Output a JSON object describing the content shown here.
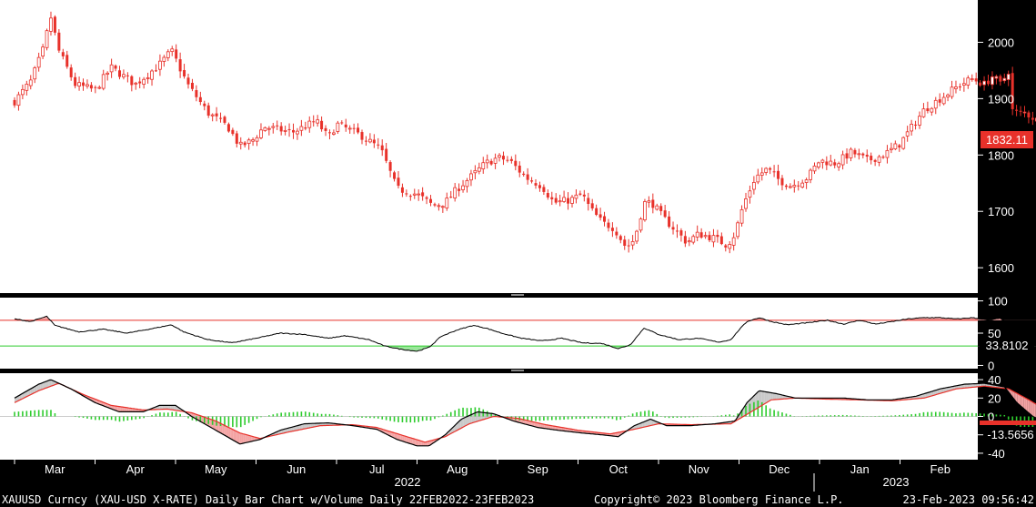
{
  "footer": {
    "left": "XAUUSD Curncy (XAU-USD X-RATE) Daily Bar Chart w/Volume  Daily 22FEB2022-23FEB2023",
    "center": "Copyright© 2023 Bloomberg Finance L.P.",
    "right": "23-Feb-2023 09:56:42"
  },
  "colors": {
    "background": "#000000",
    "panel": "#ffffff",
    "candle": "#e8312a",
    "rsi_line": "#000000",
    "overbought": "#e8312a",
    "oversold": "#2ecc2e",
    "macd_line": "#000000",
    "signal_line": "#e8312a",
    "histogram": "#2ecc2e",
    "last_value_tag": "#e8312a"
  },
  "chart_data": [
    {
      "type": "candlestick",
      "name": "price",
      "last_value": "1832.11",
      "yticks": [
        "2000",
        "1900",
        "1800",
        "1700",
        "1600"
      ],
      "ylim": [
        1555,
        2075
      ],
      "xlabels": [
        "Mar",
        "Apr",
        "May",
        "Jun",
        "Jul",
        "Aug",
        "Sep",
        "Oct",
        "Nov",
        "Dec",
        "Jan",
        "Feb"
      ],
      "year_labels": [
        "2022",
        "2023"
      ],
      "close_anchors": [
        {
          "m": 0.0,
          "v": 1895
        },
        {
          "m": 0.2,
          "v": 1930
        },
        {
          "m": 0.35,
          "v": 1985
        },
        {
          "m": 0.45,
          "v": 2045
        },
        {
          "m": 0.55,
          "v": 1985
        },
        {
          "m": 0.75,
          "v": 1925
        },
        {
          "m": 1.0,
          "v": 1915
        },
        {
          "m": 1.2,
          "v": 1955
        },
        {
          "m": 1.5,
          "v": 1925
        },
        {
          "m": 1.8,
          "v": 1960
        },
        {
          "m": 1.95,
          "v": 1985
        },
        {
          "m": 2.15,
          "v": 1925
        },
        {
          "m": 2.4,
          "v": 1875
        },
        {
          "m": 2.65,
          "v": 1850
        },
        {
          "m": 2.8,
          "v": 1815
        },
        {
          "m": 2.95,
          "v": 1825
        },
        {
          "m": 3.1,
          "v": 1850
        },
        {
          "m": 3.45,
          "v": 1840
        },
        {
          "m": 3.75,
          "v": 1860
        },
        {
          "m": 3.9,
          "v": 1830
        },
        {
          "m": 4.0,
          "v": 1855
        },
        {
          "m": 4.3,
          "v": 1835
        },
        {
          "m": 4.55,
          "v": 1810
        },
        {
          "m": 4.75,
          "v": 1740
        },
        {
          "m": 5.0,
          "v": 1730
        },
        {
          "m": 5.2,
          "v": 1710
        },
        {
          "m": 5.35,
          "v": 1715
        },
        {
          "m": 5.5,
          "v": 1740
        },
        {
          "m": 5.7,
          "v": 1765
        },
        {
          "m": 5.85,
          "v": 1785
        },
        {
          "m": 6.0,
          "v": 1795
        },
        {
          "m": 6.15,
          "v": 1790
        },
        {
          "m": 6.35,
          "v": 1760
        },
        {
          "m": 6.55,
          "v": 1745
        },
        {
          "m": 6.7,
          "v": 1715
        },
        {
          "m": 6.9,
          "v": 1720
        },
        {
          "m": 7.05,
          "v": 1730
        },
        {
          "m": 7.15,
          "v": 1705
        },
        {
          "m": 7.3,
          "v": 1680
        },
        {
          "m": 7.45,
          "v": 1670
        },
        {
          "m": 7.6,
          "v": 1635
        },
        {
          "m": 7.7,
          "v": 1650
        },
        {
          "m": 7.82,
          "v": 1715
        },
        {
          "m": 7.92,
          "v": 1715
        },
        {
          "m": 8.05,
          "v": 1690
        },
        {
          "m": 8.2,
          "v": 1668
        },
        {
          "m": 8.35,
          "v": 1645
        },
        {
          "m": 8.5,
          "v": 1660
        },
        {
          "m": 8.7,
          "v": 1652
        },
        {
          "m": 8.85,
          "v": 1640
        },
        {
          "m": 8.95,
          "v": 1660
        },
        {
          "m": 9.05,
          "v": 1710
        },
        {
          "m": 9.2,
          "v": 1760
        },
        {
          "m": 9.35,
          "v": 1775
        },
        {
          "m": 9.5,
          "v": 1755
        },
        {
          "m": 9.65,
          "v": 1745
        },
        {
          "m": 9.85,
          "v": 1760
        },
        {
          "m": 10.0,
          "v": 1790
        },
        {
          "m": 10.2,
          "v": 1785
        },
        {
          "m": 10.4,
          "v": 1805
        },
        {
          "m": 10.6,
          "v": 1790
        },
        {
          "m": 10.8,
          "v": 1800
        },
        {
          "m": 11.0,
          "v": 1820
        },
        {
          "m": 11.15,
          "v": 1850
        },
        {
          "m": 11.3,
          "v": 1880
        },
        {
          "m": 11.45,
          "v": 1895
        },
        {
          "m": 11.6,
          "v": 1910
        },
        {
          "m": 11.75,
          "v": 1925
        },
        {
          "m": 11.9,
          "v": 1935
        },
        {
          "m": 12.05,
          "v": 1925
        },
        {
          "m": 12.15,
          "v": 1940
        },
        {
          "m": 12.25,
          "v": 1925
        },
        {
          "m": 12.35,
          "v": 1950
        },
        {
          "m": 12.4,
          "v": 1875
        },
        {
          "m": 12.55,
          "v": 1875
        },
        {
          "m": 12.7,
          "v": 1862
        },
        {
          "m": 12.85,
          "v": 1840
        },
        {
          "m": 13.0,
          "v": 1845
        },
        {
          "m": 13.1,
          "v": 1832
        }
      ]
    },
    {
      "type": "line",
      "name": "rsi",
      "last_value": "33.8102",
      "yticks": [
        "100",
        "50",
        "0"
      ],
      "ylim": [
        -5,
        105
      ],
      "overbought_level": 70,
      "oversold_level": 30,
      "points": [
        {
          "m": 0.0,
          "v": 72
        },
        {
          "m": 0.2,
          "v": 68
        },
        {
          "m": 0.4,
          "v": 76
        },
        {
          "m": 0.5,
          "v": 62
        },
        {
          "m": 0.8,
          "v": 52
        },
        {
          "m": 1.1,
          "v": 56
        },
        {
          "m": 1.4,
          "v": 50
        },
        {
          "m": 1.75,
          "v": 58
        },
        {
          "m": 1.95,
          "v": 63
        },
        {
          "m": 2.1,
          "v": 52
        },
        {
          "m": 2.4,
          "v": 40
        },
        {
          "m": 2.7,
          "v": 35
        },
        {
          "m": 3.0,
          "v": 42
        },
        {
          "m": 3.3,
          "v": 50
        },
        {
          "m": 3.6,
          "v": 48
        },
        {
          "m": 3.9,
          "v": 42
        },
        {
          "m": 4.1,
          "v": 46
        },
        {
          "m": 4.4,
          "v": 40
        },
        {
          "m": 4.6,
          "v": 30
        },
        {
          "m": 4.8,
          "v": 25
        },
        {
          "m": 5.0,
          "v": 22
        },
        {
          "m": 5.15,
          "v": 28
        },
        {
          "m": 5.3,
          "v": 45
        },
        {
          "m": 5.5,
          "v": 55
        },
        {
          "m": 5.7,
          "v": 62
        },
        {
          "m": 5.85,
          "v": 58
        },
        {
          "m": 6.05,
          "v": 50
        },
        {
          "m": 6.3,
          "v": 42
        },
        {
          "m": 6.55,
          "v": 38
        },
        {
          "m": 6.8,
          "v": 42
        },
        {
          "m": 7.05,
          "v": 35
        },
        {
          "m": 7.3,
          "v": 34
        },
        {
          "m": 7.5,
          "v": 26
        },
        {
          "m": 7.65,
          "v": 32
        },
        {
          "m": 7.82,
          "v": 58
        },
        {
          "m": 8.0,
          "v": 48
        },
        {
          "m": 8.25,
          "v": 40
        },
        {
          "m": 8.5,
          "v": 42
        },
        {
          "m": 8.75,
          "v": 36
        },
        {
          "m": 8.9,
          "v": 40
        },
        {
          "m": 9.0,
          "v": 55
        },
        {
          "m": 9.1,
          "v": 68
        },
        {
          "m": 9.25,
          "v": 74
        },
        {
          "m": 9.4,
          "v": 68
        },
        {
          "m": 9.6,
          "v": 63
        },
        {
          "m": 9.85,
          "v": 66
        },
        {
          "m": 10.1,
          "v": 70
        },
        {
          "m": 10.3,
          "v": 64
        },
        {
          "m": 10.5,
          "v": 70
        },
        {
          "m": 10.7,
          "v": 64
        },
        {
          "m": 10.9,
          "v": 68
        },
        {
          "m": 11.1,
          "v": 72
        },
        {
          "m": 11.3,
          "v": 74
        },
        {
          "m": 11.5,
          "v": 74
        },
        {
          "m": 11.7,
          "v": 72
        },
        {
          "m": 11.9,
          "v": 74
        },
        {
          "m": 12.1,
          "v": 70
        },
        {
          "m": 12.25,
          "v": 73
        },
        {
          "m": 12.35,
          "v": 64
        },
        {
          "m": 12.45,
          "v": 46
        },
        {
          "m": 12.6,
          "v": 42
        },
        {
          "m": 12.8,
          "v": 36
        },
        {
          "m": 13.0,
          "v": 36
        },
        {
          "m": 13.1,
          "v": 34
        }
      ]
    },
    {
      "type": "line",
      "name": "macd",
      "last_value": "-13.5656",
      "yticks": [
        "40",
        "20",
        "0",
        "-20",
        "-40"
      ],
      "ylim": [
        -47,
        47
      ],
      "macd_points": [
        {
          "m": 0.0,
          "v": 20
        },
        {
          "m": 0.3,
          "v": 35
        },
        {
          "m": 0.45,
          "v": 40
        },
        {
          "m": 0.7,
          "v": 30
        },
        {
          "m": 1.0,
          "v": 15
        },
        {
          "m": 1.3,
          "v": 5
        },
        {
          "m": 1.6,
          "v": 5
        },
        {
          "m": 1.8,
          "v": 12
        },
        {
          "m": 2.0,
          "v": 12
        },
        {
          "m": 2.2,
          "v": 0
        },
        {
          "m": 2.5,
          "v": -15
        },
        {
          "m": 2.8,
          "v": -30
        },
        {
          "m": 3.05,
          "v": -25
        },
        {
          "m": 3.3,
          "v": -15
        },
        {
          "m": 3.6,
          "v": -8
        },
        {
          "m": 3.9,
          "v": -7
        },
        {
          "m": 4.2,
          "v": -10
        },
        {
          "m": 4.5,
          "v": -14
        },
        {
          "m": 4.75,
          "v": -25
        },
        {
          "m": 5.0,
          "v": -32
        },
        {
          "m": 5.15,
          "v": -32
        },
        {
          "m": 5.35,
          "v": -20
        },
        {
          "m": 5.55,
          "v": -3
        },
        {
          "m": 5.75,
          "v": 5
        },
        {
          "m": 5.95,
          "v": 3
        },
        {
          "m": 6.2,
          "v": -5
        },
        {
          "m": 6.5,
          "v": -12
        },
        {
          "m": 6.75,
          "v": -15
        },
        {
          "m": 7.05,
          "v": -18
        },
        {
          "m": 7.3,
          "v": -20
        },
        {
          "m": 7.5,
          "v": -22
        },
        {
          "m": 7.7,
          "v": -10
        },
        {
          "m": 7.9,
          "v": -3
        },
        {
          "m": 8.1,
          "v": -10
        },
        {
          "m": 8.4,
          "v": -10
        },
        {
          "m": 8.7,
          "v": -8
        },
        {
          "m": 8.95,
          "v": -5
        },
        {
          "m": 9.1,
          "v": 15
        },
        {
          "m": 9.25,
          "v": 28
        },
        {
          "m": 9.45,
          "v": 25
        },
        {
          "m": 9.7,
          "v": 20
        },
        {
          "m": 10.0,
          "v": 20
        },
        {
          "m": 10.3,
          "v": 20
        },
        {
          "m": 10.6,
          "v": 18
        },
        {
          "m": 10.9,
          "v": 18
        },
        {
          "m": 11.2,
          "v": 22
        },
        {
          "m": 11.5,
          "v": 30
        },
        {
          "m": 11.8,
          "v": 35
        },
        {
          "m": 12.05,
          "v": 36
        },
        {
          "m": 12.3,
          "v": 32
        },
        {
          "m": 12.45,
          "v": 15
        },
        {
          "m": 12.65,
          "v": 0
        },
        {
          "m": 12.85,
          "v": -8
        },
        {
          "m": 13.0,
          "v": -10
        },
        {
          "m": 13.1,
          "v": -13.5656
        }
      ],
      "signal_points": [
        {
          "m": 0.0,
          "v": 15
        },
        {
          "m": 0.3,
          "v": 28
        },
        {
          "m": 0.55,
          "v": 36
        },
        {
          "m": 0.85,
          "v": 24
        },
        {
          "m": 1.2,
          "v": 12
        },
        {
          "m": 1.6,
          "v": 7
        },
        {
          "m": 1.9,
          "v": 8
        },
        {
          "m": 2.2,
          "v": 4
        },
        {
          "m": 2.5,
          "v": -5
        },
        {
          "m": 2.8,
          "v": -18
        },
        {
          "m": 3.05,
          "v": -24
        },
        {
          "m": 3.4,
          "v": -17
        },
        {
          "m": 3.8,
          "v": -10
        },
        {
          "m": 4.2,
          "v": -9
        },
        {
          "m": 4.5,
          "v": -12
        },
        {
          "m": 4.8,
          "v": -20
        },
        {
          "m": 5.1,
          "v": -28
        },
        {
          "m": 5.35,
          "v": -22
        },
        {
          "m": 5.65,
          "v": -8
        },
        {
          "m": 5.95,
          "v": 0
        },
        {
          "m": 6.25,
          "v": -2
        },
        {
          "m": 6.6,
          "v": -9
        },
        {
          "m": 7.0,
          "v": -15
        },
        {
          "m": 7.4,
          "v": -19
        },
        {
          "m": 7.7,
          "v": -14
        },
        {
          "m": 8.0,
          "v": -8
        },
        {
          "m": 8.4,
          "v": -9
        },
        {
          "m": 8.9,
          "v": -8
        },
        {
          "m": 9.15,
          "v": 5
        },
        {
          "m": 9.4,
          "v": 18
        },
        {
          "m": 9.7,
          "v": 20
        },
        {
          "m": 10.0,
          "v": 19
        },
        {
          "m": 10.5,
          "v": 18
        },
        {
          "m": 10.9,
          "v": 17
        },
        {
          "m": 11.3,
          "v": 20
        },
        {
          "m": 11.7,
          "v": 30
        },
        {
          "m": 12.05,
          "v": 33
        },
        {
          "m": 12.35,
          "v": 30
        },
        {
          "m": 12.6,
          "v": 18
        },
        {
          "m": 12.85,
          "v": 5
        },
        {
          "m": 13.0,
          "v": -3
        },
        {
          "m": 13.1,
          "v": -8
        }
      ]
    }
  ]
}
